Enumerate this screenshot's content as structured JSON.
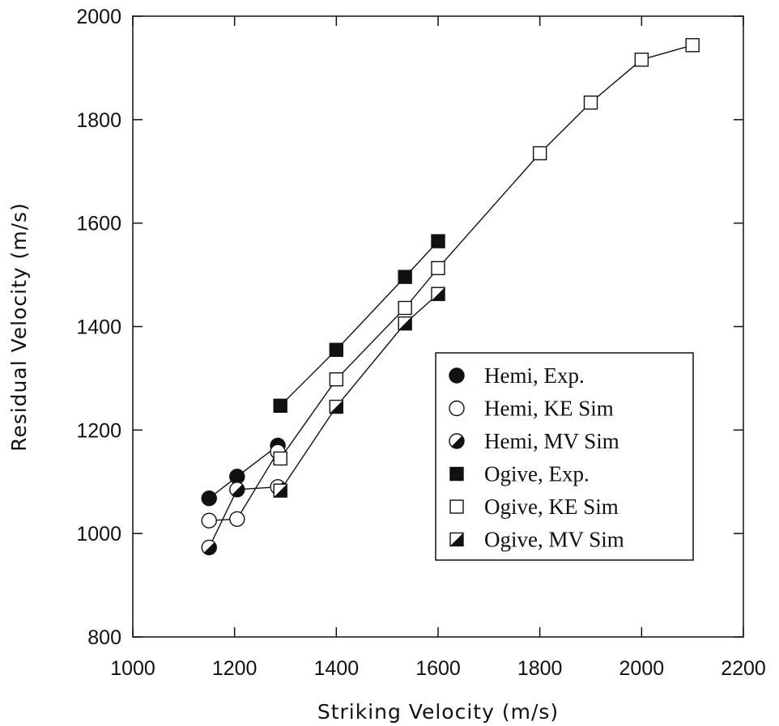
{
  "chart_data": {
    "type": "scatter",
    "title": "",
    "xlabel": "Striking Velocity (m/s)",
    "ylabel": "Residual Velocity (m/s)",
    "xlim": [
      1000,
      2200
    ],
    "ylim": [
      800,
      2000
    ],
    "xticks": [
      "1000",
      "1200",
      "1400",
      "1600",
      "1800",
      "2000",
      "2200"
    ],
    "yticks": [
      "800",
      "1000",
      "1200",
      "1400",
      "1600",
      "1800",
      "2000"
    ],
    "grid": false,
    "legend_position": "right",
    "series": [
      {
        "name": "Hemi, Exp.",
        "marker": "filled-circle",
        "connected": true,
        "x": [
          1150,
          1205,
          1285
        ],
        "y": [
          1068,
          1110,
          1170
        ]
      },
      {
        "name": "Hemi, KE Sim",
        "marker": "open-circle",
        "connected": true,
        "x": [
          1150,
          1205,
          1285
        ],
        "y": [
          1025,
          1028,
          1158
        ]
      },
      {
        "name": "Hemi, MV Sim",
        "marker": "half-circle",
        "connected": true,
        "x": [
          1150,
          1205,
          1285
        ],
        "y": [
          973,
          1085,
          1090
        ]
      },
      {
        "name": "Ogive, Exp.",
        "marker": "filled-square",
        "connected": true,
        "x": [
          1290,
          1400,
          1535,
          1600
        ],
        "y": [
          1247,
          1355,
          1496,
          1565
        ]
      },
      {
        "name": "Ogive, KE Sim",
        "marker": "open-square",
        "connected": true,
        "x": [
          1290,
          1400,
          1535,
          1600,
          1800,
          1900,
          2000,
          2100
        ],
        "y": [
          1145,
          1298,
          1436,
          1513,
          1735,
          1833,
          1916,
          1944
        ]
      },
      {
        "name": "Ogive, MV Sim",
        "marker": "half-square",
        "connected": true,
        "x": [
          1290,
          1400,
          1535,
          1600
        ],
        "y": [
          1083,
          1245,
          1406,
          1463
        ]
      }
    ]
  }
}
